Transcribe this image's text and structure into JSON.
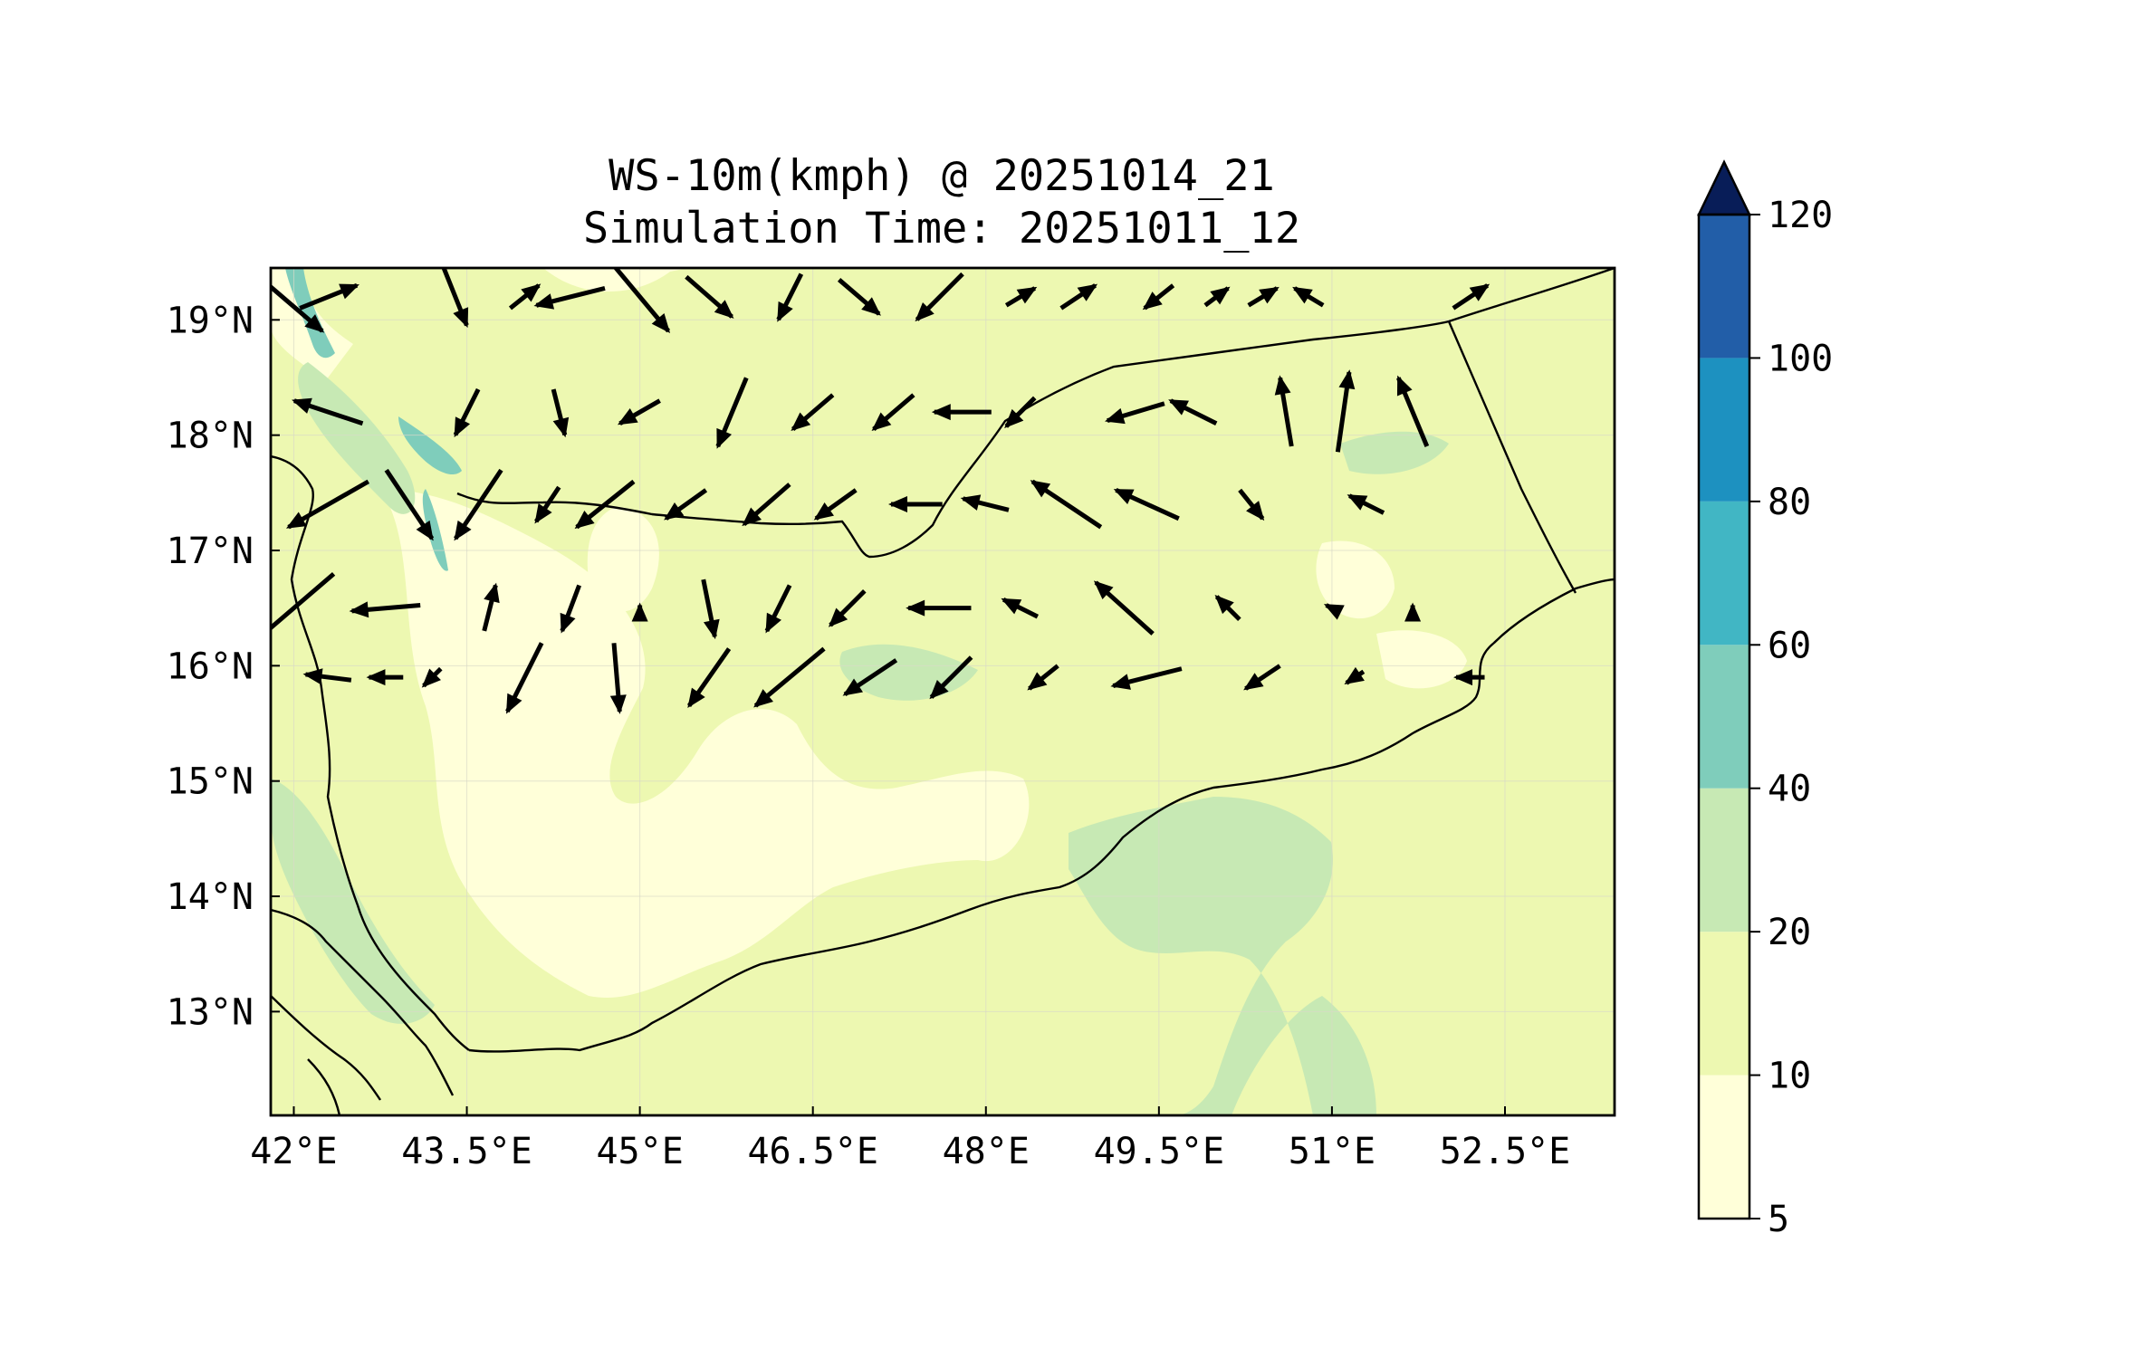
{
  "title": {
    "line1": "WS-10m(kmph) @ 20251014_21",
    "line2": "Simulation Time: 20251011_12"
  },
  "map": {
    "lon_range": [
      41.8,
      53.45
    ],
    "lat_range": [
      12.1,
      19.45
    ],
    "lon_ticks": [
      {
        "value": 42.0,
        "label": "42°E"
      },
      {
        "value": 43.5,
        "label": "43.5°E"
      },
      {
        "value": 45.0,
        "label": "45°E"
      },
      {
        "value": 46.5,
        "label": "46.5°E"
      },
      {
        "value": 48.0,
        "label": "48°E"
      },
      {
        "value": 49.5,
        "label": "49.5°E"
      },
      {
        "value": 51.0,
        "label": "51°E"
      },
      {
        "value": 52.5,
        "label": "52.5°E"
      }
    ],
    "lat_ticks": [
      {
        "value": 19,
        "label": "19°N"
      },
      {
        "value": 18,
        "label": "18°N"
      },
      {
        "value": 17,
        "label": "17°N"
      },
      {
        "value": 16,
        "label": "16°N"
      },
      {
        "value": 15,
        "label": "15°N"
      },
      {
        "value": 14,
        "label": "14°N"
      },
      {
        "value": 13,
        "label": "13°N"
      }
    ]
  },
  "colorbar": {
    "levels": [
      5,
      10,
      20,
      40,
      60,
      80,
      100,
      120
    ],
    "colors": [
      "#ffffd9",
      "#edf8b1",
      "#c7e9b4",
      "#7fcdbb",
      "#41b6c4",
      "#1d91c0",
      "#225ea8",
      "#253494"
    ],
    "extend_color": "#081d58",
    "tick_labels": [
      "5",
      "10",
      "20",
      "40",
      "60",
      "80",
      "100",
      "120"
    ]
  },
  "colors": {
    "land_base": "#edf8b1",
    "low_wind": "#ffffd9",
    "mid_wind": "#c7e9b4",
    "high_wind": "#7fcdbb",
    "coast": "#000000",
    "arrow": "#000000"
  },
  "chart_data": {
    "type": "filled-contour+quiver",
    "title": "WS-10m(kmph) @ 20251014_21 / Simulation Time: 20251011_12",
    "xlabel": "Longitude",
    "ylabel": "Latitude",
    "xlim": [
      41.8,
      53.45
    ],
    "ylim": [
      12.1,
      19.45
    ],
    "contour_levels": [
      5,
      10,
      20,
      40,
      60,
      80,
      100,
      120
    ],
    "wind_vectors_grid": {
      "description": "approximate u,v direction components (eastward, northward) read from arrows; rows by latitude",
      "rows": [
        {
          "lat": 19.2,
          "vectors": [
            [
              41.9,
              1.4,
              -1.2
            ],
            [
              42.3,
              1.0,
              0.4
            ],
            [
              43.4,
              0.4,
              -1.0
            ],
            [
              44.0,
              0.5,
              0.4
            ],
            [
              44.4,
              -1.2,
              -0.3
            ],
            [
              45.0,
              1.0,
              -1.2
            ],
            [
              45.6,
              0.8,
              -0.7
            ],
            [
              46.3,
              -0.4,
              -0.8
            ],
            [
              46.9,
              0.7,
              -0.6
            ],
            [
              47.6,
              -0.8,
              -0.8
            ],
            [
              48.3,
              0.5,
              0.3
            ],
            [
              48.8,
              0.6,
              0.4
            ],
            [
              49.5,
              -0.5,
              -0.4
            ],
            [
              50.0,
              0.4,
              0.3
            ],
            [
              50.4,
              0.5,
              0.3
            ],
            [
              50.8,
              -0.5,
              0.3
            ],
            [
              52.2,
              0.6,
              0.4
            ]
          ]
        },
        {
          "lat": 18.2,
          "vectors": [
            [
              42.3,
              -1.2,
              0.4
            ],
            [
              43.5,
              -0.4,
              -0.8
            ],
            [
              44.3,
              0.2,
              -0.8
            ],
            [
              45.0,
              -0.7,
              -0.4
            ],
            [
              45.8,
              -0.5,
              -1.2
            ],
            [
              46.5,
              -0.7,
              -0.6
            ],
            [
              47.2,
              -0.7,
              -0.6
            ],
            [
              47.8,
              -1.0,
              0.0
            ],
            [
              48.3,
              -0.5,
              -0.5
            ],
            [
              49.3,
              -1.0,
              -0.3
            ],
            [
              49.8,
              -0.8,
              0.4
            ],
            [
              50.6,
              -0.2,
              1.2
            ],
            [
              51.1,
              0.2,
              1.4
            ],
            [
              51.7,
              -0.5,
              1.2
            ]
          ]
        },
        {
          "lat": 17.4,
          "vectors": [
            [
              42.3,
              -1.4,
              -0.8
            ],
            [
              43.0,
              0.8,
              -1.2
            ],
            [
              43.6,
              -0.8,
              -1.2
            ],
            [
              44.2,
              -0.4,
              -0.6
            ],
            [
              44.7,
              -1.0,
              -0.8
            ],
            [
              45.4,
              -0.7,
              -0.5
            ],
            [
              46.1,
              -0.8,
              -0.7
            ],
            [
              46.7,
              -0.7,
              -0.5
            ],
            [
              47.4,
              -0.9,
              0.0
            ],
            [
              48.0,
              -0.8,
              0.2
            ],
            [
              48.7,
              -1.2,
              0.8
            ],
            [
              49.4,
              -1.1,
              0.5
            ],
            [
              50.3,
              0.4,
              -0.5
            ],
            [
              51.3,
              -0.6,
              0.3
            ]
          ]
        },
        {
          "lat": 16.5,
          "vectors": [
            [
              42.0,
              -1.4,
              -1.2
            ],
            [
              42.8,
              -1.2,
              -0.1
            ],
            [
              43.7,
              0.2,
              0.8
            ],
            [
              44.4,
              -0.3,
              -0.8
            ],
            [
              45.0,
              0.0,
              0.1
            ],
            [
              45.6,
              0.2,
              -1.0
            ],
            [
              46.2,
              -0.4,
              -0.8
            ],
            [
              46.8,
              -0.6,
              -0.6
            ],
            [
              47.6,
              -1.1,
              0.0
            ],
            [
              48.3,
              -0.6,
              0.3
            ],
            [
              49.2,
              -1.0,
              0.9
            ],
            [
              50.1,
              -0.4,
              0.4
            ],
            [
              51.0,
              -0.2,
              0.1
            ],
            [
              51.7,
              0.0,
              0.1
            ]
          ]
        },
        {
          "lat": 15.9,
          "vectors": [
            [
              42.3,
              -0.8,
              0.1
            ],
            [
              42.8,
              -0.6,
              0.0
            ],
            [
              43.2,
              -0.3,
              -0.3
            ],
            [
              44.0,
              -0.6,
              -1.2
            ],
            [
              44.8,
              0.1,
              -1.2
            ],
            [
              45.6,
              -0.7,
              -1.0
            ],
            [
              46.3,
              -1.2,
              -1.0
            ],
            [
              47.0,
              -0.9,
              -0.6
            ],
            [
              47.7,
              -0.7,
              -0.7
            ],
            [
              48.5,
              -0.5,
              -0.4
            ],
            [
              49.4,
              -1.2,
              -0.3
            ],
            [
              50.4,
              -0.6,
              -0.4
            ],
            [
              51.2,
              -0.3,
              -0.2
            ],
            [
              52.2,
              -0.5,
              0.0
            ]
          ]
        }
      ]
    },
    "colorbar": {
      "min": 5,
      "max": 120,
      "extend": "max",
      "label_values": [
        5,
        10,
        20,
        40,
        60,
        80,
        100,
        120
      ]
    }
  }
}
